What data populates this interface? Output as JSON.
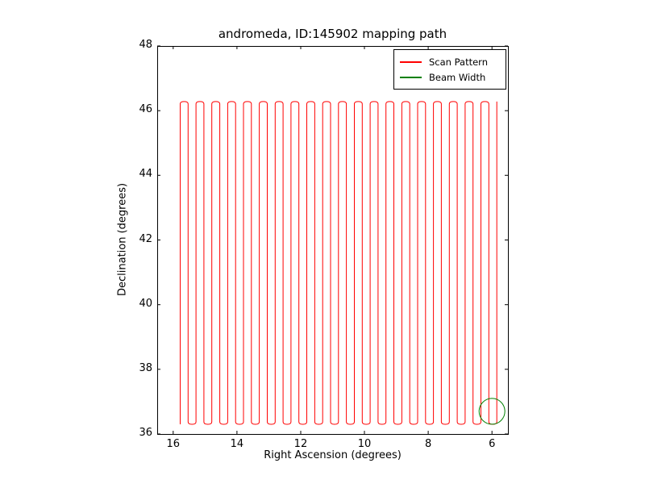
{
  "title": "andromeda, ID:145902 mapping path",
  "axes": {
    "xlabel": "Right Ascension (degrees)",
    "ylabel": "Declination (degrees)"
  },
  "legend": {
    "position": "upper right",
    "items": [
      {
        "label": "Scan Pattern",
        "color": "#ff0000"
      },
      {
        "label": "Beam Width",
        "color": "#008000"
      }
    ]
  },
  "chart_data": {
    "type": "line",
    "title": "andromeda, ID:145902 mapping path",
    "xlabel": "Right Ascension (degrees)",
    "ylabel": "Declination (degrees)",
    "x_axis_inverted": true,
    "xlim": [
      16.5,
      5.5
    ],
    "ylim": [
      36,
      48
    ],
    "xticks": [
      16,
      14,
      12,
      10,
      8,
      6
    ],
    "yticks": [
      36,
      38,
      40,
      42,
      44,
      46,
      48
    ],
    "grid": false,
    "legend_position": "upper right",
    "series": [
      {
        "name": "Scan Pattern",
        "color": "#ff0000",
        "kind": "raster_scan",
        "description": "Boustrophedon raster scan: alternating vertical sweeps in declination between dec_min and dec_max, stepping in right ascension from ra_start to ra_end",
        "ra_start": 15.78,
        "ra_end": 5.85,
        "dec_min": 36.3,
        "dec_max": 46.28,
        "num_sweeps": 41
      },
      {
        "name": "Beam Width",
        "color": "#008000",
        "kind": "circle",
        "center_ra": 6.0,
        "center_dec": 36.7,
        "radius_deg": 0.4
      }
    ]
  }
}
